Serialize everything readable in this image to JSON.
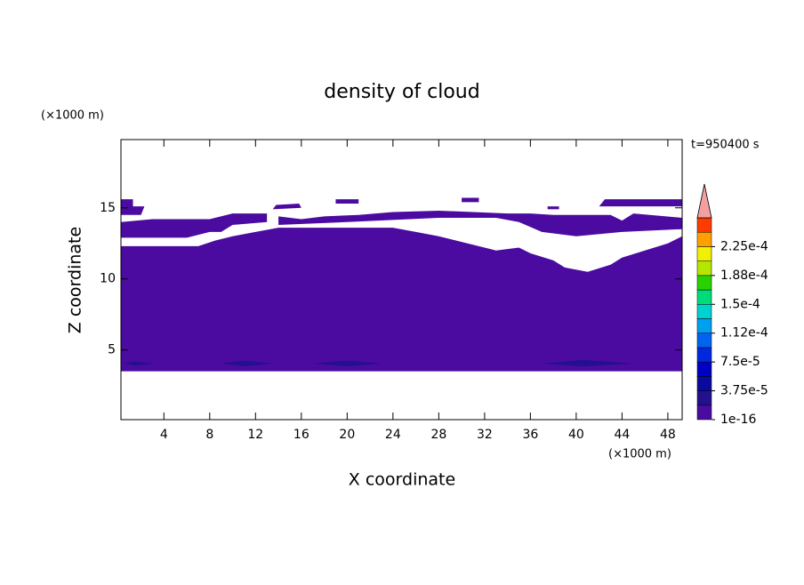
{
  "chart_data": {
    "type": "contour",
    "title": "density of cloud",
    "xlabel": "X coordinate",
    "ylabel": "Z coordinate",
    "xunit": "(×1000 m)",
    "yunit": "(×1000 m)",
    "annotation": "t=950400 s",
    "xlim": [
      0.25,
      49.25
    ],
    "ylim": [
      0.1,
      19.8
    ],
    "xticks": [
      4,
      8,
      12,
      16,
      20,
      24,
      28,
      32,
      36,
      40,
      44,
      48
    ],
    "yticks": [
      5,
      10,
      15
    ],
    "colorbar": {
      "levels": [
        1e-16,
        1.875e-05,
        3.75e-05,
        5.625e-05,
        7.5e-05,
        9.375e-05,
        0.0001125,
        0.00013125,
        0.00015,
        0.00016875,
        0.0001875,
        0.00020625,
        0.000225,
        0.00024375,
        0.0002625
      ],
      "colors": [
        "#4b0aa0",
        "#22108e",
        "#0a0a9c",
        "#0000c4",
        "#0028e0",
        "#0064f0",
        "#00a0f0",
        "#00d2d2",
        "#00dc78",
        "#28d200",
        "#b4e600",
        "#f0f000",
        "#ffa000",
        "#ff3c00"
      ],
      "extend_color": "#f4a0a0",
      "ticks": [
        1e-16,
        {
          "value": 3.75e-05,
          "label": "3.75e-5"
        },
        {
          "value": 7.5e-05,
          "label": "7.5e-5"
        },
        {
          "value": 0.0001125,
          "label": "1.12e-4"
        },
        {
          "value": 0.00015,
          "label": "1.5e-4"
        },
        {
          "value": 0.0001875,
          "label": "1.88e-4"
        },
        {
          "value": 0.000225,
          "label": "2.25e-4"
        }
      ]
    },
    "regions": [
      {
        "level": 1e-16,
        "x": [
          0.25,
          49.25,
          49.25,
          48,
          46,
          44,
          43,
          41,
          39,
          38,
          36,
          35,
          33,
          32,
          30,
          28,
          26,
          24,
          20,
          14,
          12,
          10,
          8.5,
          7,
          0.25
        ],
        "z": [
          3.5,
          3.5,
          13.0,
          12.5,
          12.0,
          11.5,
          11.0,
          10.5,
          10.8,
          11.3,
          11.8,
          12.2,
          12.0,
          12.2,
          12.6,
          13.0,
          13.3,
          13.6,
          13.6,
          13.6,
          13.3,
          13.0,
          12.7,
          12.3,
          12.3
        ]
      },
      {
        "level": 1e-16,
        "x": [
          0.25,
          6,
          8,
          9,
          10,
          13,
          13,
          10,
          8,
          3,
          0.25
        ],
        "z": [
          12.9,
          12.9,
          13.3,
          13.3,
          13.8,
          14.0,
          14.6,
          14.6,
          14.2,
          14.2,
          14.0
        ]
      },
      {
        "level": 1e-16,
        "x": [
          0.25,
          2,
          2.3,
          1.3,
          1.3,
          0.25
        ],
        "z": [
          14.5,
          14.5,
          15.1,
          15.1,
          15.6,
          15.6
        ]
      },
      {
        "level": 1e-16,
        "x": [
          14,
          20,
          28,
          33,
          35,
          37,
          40,
          44,
          49.25,
          49.25,
          45,
          44,
          43,
          38,
          36,
          34,
          28,
          24,
          21,
          18,
          16,
          14
        ],
        "z": [
          13.8,
          14.0,
          14.3,
          14.3,
          14.0,
          13.3,
          13.0,
          13.3,
          13.5,
          14.3,
          14.6,
          14.1,
          14.5,
          14.5,
          14.6,
          14.6,
          14.8,
          14.7,
          14.5,
          14.4,
          14.2,
          14.4
        ]
      },
      {
        "level": 1e-16,
        "x": [
          42,
          49.25,
          49.25,
          42.5
        ],
        "z": [
          15.1,
          15.1,
          15.6,
          15.6
        ]
      },
      {
        "level": 1e-16,
        "x": [
          13.5,
          16,
          15.8,
          13.8
        ],
        "z": [
          14.9,
          15.0,
          15.3,
          15.2
        ]
      },
      {
        "level": 1e-16,
        "x": [
          19,
          21,
          21,
          19
        ],
        "z": [
          15.3,
          15.3,
          15.6,
          15.6
        ]
      },
      {
        "level": 1e-16,
        "x": [
          30,
          31.5,
          31.5,
          30
        ],
        "z": [
          15.4,
          15.4,
          15.7,
          15.7
        ]
      },
      {
        "level": 1e-16,
        "x": [
          37.5,
          38.5,
          38.5,
          37.5
        ],
        "z": [
          14.9,
          14.9,
          15.1,
          15.1
        ]
      },
      {
        "level": 1.875e-05,
        "x": [
          0.5,
          1.5,
          3,
          1.5
        ],
        "z": [
          4.05,
          3.9,
          4.05,
          4.2
        ]
      },
      {
        "level": 1.875e-05,
        "x": [
          9,
          11,
          13.5,
          11
        ],
        "z": [
          4.05,
          3.85,
          4.05,
          4.25
        ]
      },
      {
        "level": 1.875e-05,
        "x": [
          17,
          20,
          23,
          20
        ],
        "z": [
          4.05,
          3.85,
          4.05,
          4.25
        ]
      },
      {
        "level": 1.875e-05,
        "x": [
          37,
          40.5,
          45,
          40.5
        ],
        "z": [
          4.05,
          3.85,
          4.05,
          4.3
        ]
      }
    ]
  }
}
